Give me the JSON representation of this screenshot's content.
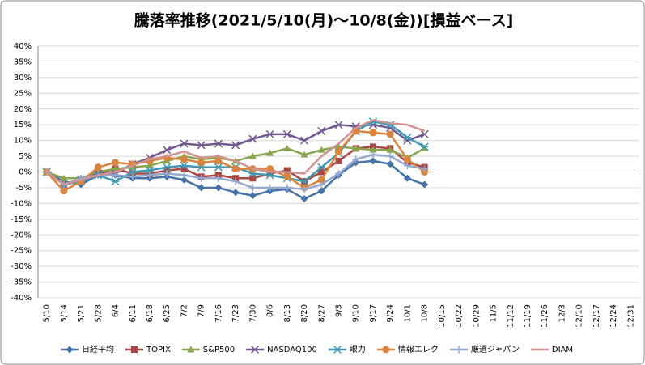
{
  "chart_data": {
    "type": "line",
    "title": "騰落率推移(2021/5/10(月)～10/8(金))[損益ベース]",
    "categories": [
      "5/10",
      "5/14",
      "5/21",
      "5/28",
      "6/4",
      "6/11",
      "6/18",
      "6/25",
      "7/2",
      "7/9",
      "7/16",
      "7/23",
      "7/30",
      "8/6",
      "8/13",
      "8/20",
      "8/27",
      "9/3",
      "9/10",
      "9/17",
      "9/24",
      "10/1",
      "10/8",
      "10/15",
      "10/22",
      "10/29",
      "11/5",
      "11/12",
      "11/19",
      "11/26",
      "12/3",
      "12/10",
      "12/17",
      "12/24",
      "12/31"
    ],
    "ylim": [
      -40,
      40
    ],
    "yticks": [
      {
        "value": -40,
        "label": "-40%"
      },
      {
        "value": -35,
        "label": "-35%"
      },
      {
        "value": -30,
        "label": "-30%"
      },
      {
        "value": -25,
        "label": "-25%"
      },
      {
        "value": -20,
        "label": "-20%"
      },
      {
        "value": -15,
        "label": "-15%"
      },
      {
        "value": -10,
        "label": "-10%"
      },
      {
        "value": -5,
        "label": "-5%"
      },
      {
        "value": 0,
        "label": "0%"
      },
      {
        "value": 5,
        "label": "5%"
      },
      {
        "value": 10,
        "label": "10%"
      },
      {
        "value": 15,
        "label": "15%"
      },
      {
        "value": 20,
        "label": "20%"
      },
      {
        "value": 25,
        "label": "25%"
      },
      {
        "value": 30,
        "label": "30%"
      },
      {
        "value": 35,
        "label": "35%"
      },
      {
        "value": 40,
        "label": "40%"
      }
    ],
    "grid": true,
    "legend": "bottom",
    "series": [
      {
        "name": "日経平均",
        "color": "#4572a7",
        "marker": "diamond",
        "values": [
          0,
          -3,
          -4,
          -1,
          -1,
          -2,
          -2,
          -1.5,
          -2.5,
          -5,
          -5,
          -6.5,
          -7.5,
          -6,
          -5.5,
          -8.5,
          -6,
          -1,
          3,
          3.5,
          2.5,
          -2,
          -4,
          null,
          null,
          null,
          null,
          null,
          null,
          null,
          null,
          null,
          null,
          null,
          null
        ]
      },
      {
        "name": "TOPIX",
        "color": "#aa4643",
        "marker": "square",
        "values": [
          0,
          -4,
          -3,
          -0.5,
          1,
          -0.5,
          -0.5,
          0.5,
          1,
          -1.5,
          -1,
          -2,
          -2,
          -0.5,
          0.5,
          -3,
          0,
          3.5,
          7.5,
          8,
          7.5,
          3,
          1.5,
          null,
          null,
          null,
          null,
          null,
          null,
          null,
          null,
          null,
          null,
          null,
          null
        ]
      },
      {
        "name": "S&P500",
        "color": "#89a54e",
        "marker": "triangle",
        "values": [
          0,
          -2,
          -2,
          0,
          1,
          1.5,
          2,
          3.5,
          5,
          4,
          4.5,
          3.5,
          5,
          6,
          7.5,
          5.5,
          7,
          8,
          7.5,
          7,
          7,
          4.5,
          7.5,
          null,
          null,
          null,
          null,
          null,
          null,
          null,
          null,
          null,
          null,
          null,
          null
        ]
      },
      {
        "name": "NASDAQ100",
        "color": "#71588f",
        "marker": "x",
        "values": [
          0,
          -4,
          -2.5,
          -0.5,
          -0.5,
          2.5,
          4.5,
          7,
          9,
          8.5,
          9,
          8.5,
          10.5,
          12,
          12,
          10,
          13,
          15,
          14.5,
          15,
          14,
          10,
          12,
          null,
          null,
          null,
          null,
          null,
          null,
          null,
          null,
          null,
          null,
          null,
          null
        ]
      },
      {
        "name": "眼力",
        "color": "#4198af",
        "marker": "star",
        "values": [
          0,
          -4,
          -3,
          -1,
          -3,
          0,
          0.5,
          1.5,
          2,
          1.5,
          1.5,
          1.5,
          -0.5,
          -1,
          -2,
          -3,
          1.5,
          6,
          13,
          16,
          15,
          11,
          8,
          null,
          null,
          null,
          null,
          null,
          null,
          null,
          null,
          null,
          null,
          null,
          null
        ]
      },
      {
        "name": "情報エレク",
        "color": "#db843d",
        "marker": "circle",
        "values": [
          0,
          -6,
          -3,
          1.5,
          3,
          2.5,
          3.5,
          4.5,
          4,
          3,
          3.5,
          1,
          1,
          1,
          -1.5,
          -5,
          -2.5,
          6.5,
          13,
          12.5,
          12,
          4,
          0,
          null,
          null,
          null,
          null,
          null,
          null,
          null,
          null,
          null,
          null,
          null,
          null
        ]
      },
      {
        "name": "厳選ジャパン",
        "color": "#93a9cf",
        "marker": "plus",
        "values": [
          0,
          -4,
          -2,
          -1,
          -1,
          -1.5,
          -1,
          -0.5,
          -1,
          -2,
          -2,
          -3,
          -5,
          -5,
          -5,
          -5.5,
          -4,
          -0.5,
          4,
          5.5,
          5,
          2,
          1,
          null,
          null,
          null,
          null,
          null,
          null,
          null,
          null,
          null,
          null,
          null,
          null
        ]
      },
      {
        "name": "DIAM",
        "color": "#d19392",
        "marker": "none",
        "values": [
          0,
          -4,
          -2.5,
          -1,
          0,
          2,
          4,
          5,
          6.5,
          4.5,
          5,
          3.5,
          1,
          0,
          0,
          -0.5,
          5,
          9,
          14,
          16.5,
          15.5,
          15,
          13,
          null,
          null,
          null,
          null,
          null,
          null,
          null,
          null,
          null,
          null,
          null,
          null
        ]
      }
    ]
  }
}
